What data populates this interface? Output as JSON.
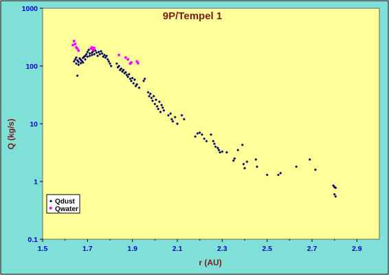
{
  "chart_data": {
    "type": "scatter",
    "title": "9P/Tempel 1",
    "xlabel": "r (AU)",
    "ylabel": "Q (kg/s)",
    "xlim": [
      1.5,
      3.0
    ],
    "ylim": [
      0.1,
      1000
    ],
    "yscale": "log",
    "x_ticks": [
      "1.5",
      "1.7",
      "1.9",
      "2.1",
      "2.3",
      "2.5",
      "2.7",
      "2.9"
    ],
    "y_ticks": [
      "0.1",
      "1",
      "10",
      "100",
      "1000"
    ],
    "grid": false,
    "legend_position": "bottom-left",
    "colors": {
      "frame": "#7FE0D8",
      "plot_bg": "#FFFF99",
      "title": "#7B1A1A",
      "axis_label": "#7B1A1A",
      "tick_label": "#0000CC",
      "qdust": "#000060",
      "qwater": "#FF00FF"
    },
    "series": [
      {
        "name": "Qdust",
        "marker": "diamond",
        "points": [
          [
            1.64,
            120
          ],
          [
            1.645,
            130
          ],
          [
            1.65,
            110
          ],
          [
            1.65,
            140
          ],
          [
            1.655,
            125
          ],
          [
            1.66,
            105
          ],
          [
            1.66,
            118
          ],
          [
            1.665,
            135
          ],
          [
            1.67,
            112
          ],
          [
            1.67,
            128
          ],
          [
            1.675,
            122
          ],
          [
            1.68,
            138
          ],
          [
            1.68,
            115
          ],
          [
            1.685,
            145
          ],
          [
            1.69,
            130
          ],
          [
            1.69,
            150
          ],
          [
            1.695,
            160
          ],
          [
            1.7,
            175
          ],
          [
            1.7,
            145
          ],
          [
            1.705,
            190
          ],
          [
            1.71,
            165
          ],
          [
            1.71,
            150
          ],
          [
            1.715,
            200
          ],
          [
            1.72,
            170
          ],
          [
            1.72,
            155
          ],
          [
            1.725,
            180
          ],
          [
            1.73,
            160
          ],
          [
            1.735,
            185
          ],
          [
            1.74,
            170
          ],
          [
            1.745,
            150
          ],
          [
            1.75,
            175
          ],
          [
            1.755,
            160
          ],
          [
            1.76,
            180
          ],
          [
            1.765,
            165
          ],
          [
            1.77,
            145
          ],
          [
            1.775,
            155
          ],
          [
            1.78,
            140
          ],
          [
            1.785,
            150
          ],
          [
            1.79,
            130
          ],
          [
            1.795,
            120
          ],
          [
            1.8,
            110
          ],
          [
            1.805,
            100
          ],
          [
            1.655,
            68
          ],
          [
            1.83,
            110
          ],
          [
            1.835,
            95
          ],
          [
            1.84,
            100
          ],
          [
            1.845,
            85
          ],
          [
            1.85,
            90
          ],
          [
            1.855,
            80
          ],
          [
            1.86,
            85
          ],
          [
            1.865,
            75
          ],
          [
            1.87,
            78
          ],
          [
            1.875,
            70
          ],
          [
            1.88,
            65
          ],
          [
            1.885,
            72
          ],
          [
            1.89,
            60
          ],
          [
            1.895,
            55
          ],
          [
            1.9,
            62
          ],
          [
            1.905,
            50
          ],
          [
            1.91,
            58
          ],
          [
            1.915,
            45
          ],
          [
            1.92,
            48
          ],
          [
            1.93,
            42
          ],
          [
            1.95,
            55
          ],
          [
            1.955,
            60
          ],
          [
            1.97,
            35
          ],
          [
            1.975,
            30
          ],
          [
            1.98,
            33
          ],
          [
            1.985,
            28
          ],
          [
            1.99,
            25
          ],
          [
            1.995,
            30
          ],
          [
            2.0,
            22
          ],
          [
            2.005,
            26
          ],
          [
            2.01,
            20
          ],
          [
            2.015,
            18
          ],
          [
            2.02,
            24
          ],
          [
            2.025,
            16
          ],
          [
            2.03,
            21
          ],
          [
            2.035,
            19
          ],
          [
            2.04,
            17
          ],
          [
            2.06,
            14
          ],
          [
            2.07,
            15
          ],
          [
            2.075,
            12
          ],
          [
            2.08,
            11
          ],
          [
            2.09,
            13
          ],
          [
            2.1,
            10
          ],
          [
            2.12,
            14
          ],
          [
            2.13,
            12
          ],
          [
            2.18,
            6
          ],
          [
            2.19,
            6.8
          ],
          [
            2.2,
            7
          ],
          [
            2.21,
            6.5
          ],
          [
            2.22,
            5.5
          ],
          [
            2.23,
            5
          ],
          [
            2.25,
            6.5
          ],
          [
            2.26,
            5
          ],
          [
            2.265,
            4.5
          ],
          [
            2.27,
            4
          ],
          [
            2.28,
            3.8
          ],
          [
            2.285,
            3.5
          ],
          [
            2.29,
            3.2
          ],
          [
            2.3,
            3.3
          ],
          [
            2.32,
            3.2
          ],
          [
            2.35,
            2.3
          ],
          [
            2.355,
            2.5
          ],
          [
            2.37,
            3.5
          ],
          [
            2.39,
            4.3
          ],
          [
            2.395,
            2
          ],
          [
            2.4,
            1.7
          ],
          [
            2.41,
            2.2
          ],
          [
            2.45,
            2.4
          ],
          [
            2.455,
            1.8
          ],
          [
            2.5,
            1.3
          ],
          [
            2.55,
            1.3
          ],
          [
            2.56,
            1.4
          ],
          [
            2.63,
            1.8
          ],
          [
            2.69,
            2.4
          ],
          [
            2.715,
            1.6
          ],
          [
            2.795,
            0.85
          ],
          [
            2.8,
            0.8
          ],
          [
            2.8,
            0.6
          ],
          [
            2.805,
            0.55
          ],
          [
            2.805,
            0.78
          ]
        ]
      },
      {
        "name": "Qwater",
        "marker": "square",
        "points": [
          [
            1.635,
            230
          ],
          [
            1.64,
            270
          ],
          [
            1.645,
            240
          ],
          [
            1.65,
            210
          ],
          [
            1.655,
            200
          ],
          [
            1.66,
            185
          ],
          [
            1.715,
            200
          ],
          [
            1.72,
            210
          ],
          [
            1.725,
            190
          ],
          [
            1.73,
            205
          ],
          [
            1.84,
            155
          ],
          [
            1.87,
            140
          ],
          [
            1.88,
            130
          ],
          [
            1.89,
            110
          ],
          [
            1.895,
            115
          ],
          [
            1.92,
            120
          ],
          [
            1.925,
            112
          ]
        ]
      }
    ]
  }
}
